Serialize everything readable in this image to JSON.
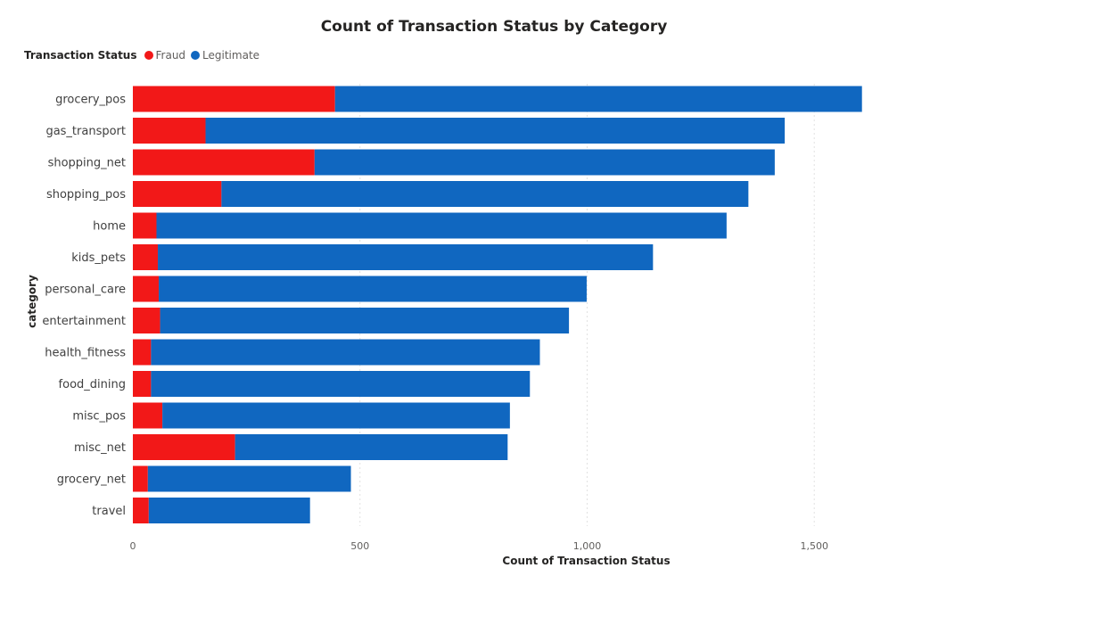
{
  "chart_data": {
    "type": "bar",
    "orientation": "horizontal",
    "stacked": true,
    "title": "Count of Transaction Status by Category",
    "xlabel": "Count of Transaction Status",
    "ylabel": "category",
    "legend_title": "Transaction Status",
    "legend_position": "top-left",
    "grid": true,
    "xlim": [
      0,
      1900
    ],
    "xticks": [
      0,
      500,
      1000,
      1500
    ],
    "xtick_labels": [
      "0",
      "500",
      "1,000",
      "1,500"
    ],
    "categories": [
      "grocery_pos",
      "gas_transport",
      "shopping_net",
      "shopping_pos",
      "home",
      "kids_pets",
      "personal_care",
      "entertainment",
      "health_fitness",
      "food_dining",
      "misc_pos",
      "misc_net",
      "grocery_net",
      "travel"
    ],
    "series": [
      {
        "name": "Fraud",
        "color": "#f21818",
        "values": [
          445,
          160,
          400,
          195,
          52,
          55,
          57,
          60,
          40,
          40,
          65,
          225,
          33,
          35
        ]
      },
      {
        "name": "Legitimate",
        "color": "#1067c0",
        "values": [
          1160,
          1275,
          1013,
          1160,
          1255,
          1090,
          942,
          900,
          856,
          834,
          765,
          600,
          447,
          355
        ]
      }
    ]
  }
}
